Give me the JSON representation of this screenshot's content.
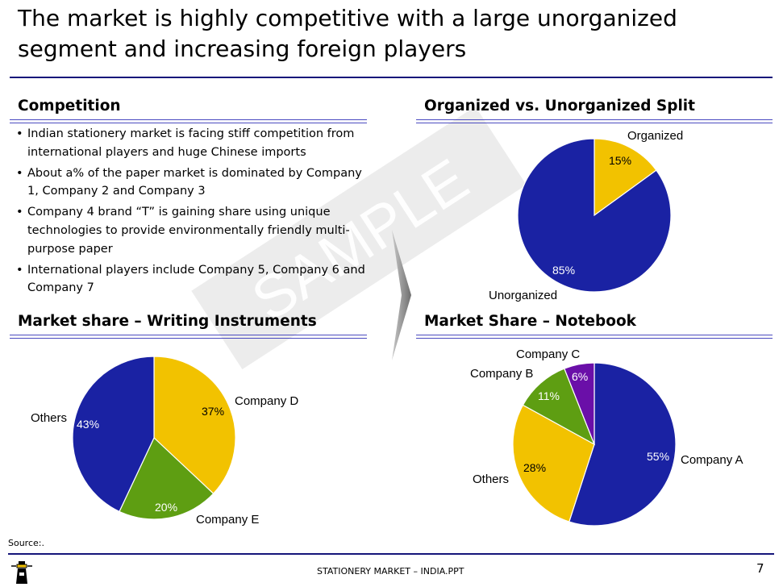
{
  "title": "The market is highly competitive with a large unorganized segment and increasing foreign players",
  "watermark": "SAMPLE",
  "competition": {
    "heading": "Competition",
    "bullets": [
      "Indian stationery market is facing stiff competition from international players and huge Chinese imports",
      "About a% of the paper market is dominated by Company 1, Company 2 and Company 3",
      "Company 4 brand “T” is gaining  share using unique technologies to provide environmentally friendly multi-purpose paper",
      "International players include Company 5, Company 6 and Company 7"
    ]
  },
  "chart_data": [
    {
      "type": "pie",
      "title": "Organized vs. Unorganized Split",
      "slices": [
        {
          "label": "Organized",
          "value": 15,
          "display": "15%",
          "color": "#f2c200"
        },
        {
          "label": "Unorganized",
          "value": 85,
          "display": "85%",
          "color": "#1a22a3"
        }
      ]
    },
    {
      "type": "pie",
      "title": "Market share – Writing Instruments",
      "slices": [
        {
          "label": "Company D",
          "value": 37,
          "display": "37%",
          "color": "#f2c200"
        },
        {
          "label": "Company E",
          "value": 20,
          "display": "20%",
          "color": "#5e9e12"
        },
        {
          "label": "Others",
          "value": 43,
          "display": "43%",
          "color": "#1a22a3"
        }
      ]
    },
    {
      "type": "pie",
      "title": "Market Share – Notebook",
      "slices": [
        {
          "label": "Company A",
          "value": 55,
          "display": "55%",
          "color": "#1a22a3"
        },
        {
          "label": "Others",
          "value": 28,
          "display": "28%",
          "color": "#f2c200"
        },
        {
          "label": "Company B",
          "value": 11,
          "display": "11%",
          "color": "#5e9e12"
        },
        {
          "label": "Company C",
          "value": 6,
          "display": "6%",
          "color": "#6a0fa8"
        }
      ]
    }
  ],
  "footer": {
    "source": "Source:.",
    "center_text": "STATIONERY MARKET – INDIA.PPT",
    "page_number": "7"
  },
  "colors": {
    "rule": "#15157a",
    "arrow": "#8a8a8a"
  }
}
